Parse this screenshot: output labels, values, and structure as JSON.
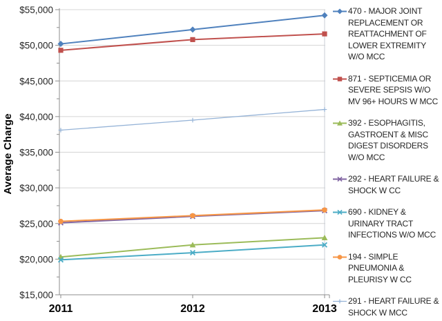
{
  "chart_data": {
    "type": "line",
    "title": "",
    "xlabel": "",
    "ylabel": "Average Charge",
    "x": [
      2011,
      2012,
      2013
    ],
    "x_tick_labels": [
      "2011",
      "2012",
      "2013"
    ],
    "ylim": [
      15000,
      55000
    ],
    "y_major_step": 5000,
    "y_minor_step": 2500,
    "y_tick_labels": [
      "$15,000",
      "$20,000",
      "$25,000",
      "$30,000",
      "$35,000",
      "$40,000",
      "$45,000",
      "$50,000",
      "$55,000"
    ],
    "grid": "horizontal-major",
    "legend_position": "right",
    "series": [
      {
        "name": "470 - MAJOR JOINT REPLACEMENT OR REATTACHMENT OF LOWER EXTREMITY W/O MCC",
        "marker": "diamond",
        "color": "#4F81BD",
        "line_width": 2,
        "values": [
          50200,
          52200,
          54200
        ]
      },
      {
        "name": "871 - SEPTICEMIA OR SEVERE SEPSIS W/O MV 96+ HOURS W MCC",
        "marker": "square",
        "color": "#C0504D",
        "line_width": 2,
        "values": [
          49300,
          50800,
          51600
        ]
      },
      {
        "name": "392 - ESOPHAGITIS, GASTROENT & MISC DIGEST DISORDERS W/O MCC",
        "marker": "triangle",
        "color": "#9BBB59",
        "line_width": 2,
        "values": [
          20300,
          22000,
          23000
        ]
      },
      {
        "name": "292 - HEART FAILURE & SHOCK W CC",
        "marker": "x",
        "color": "#8064A2",
        "line_width": 2,
        "values": [
          25100,
          26000,
          26800
        ]
      },
      {
        "name": "690 - KIDNEY & URINARY TRACT INFECTIONS W/O MCC",
        "marker": "x",
        "color": "#4BACC6",
        "line_width": 2,
        "values": [
          19900,
          20900,
          22000
        ]
      },
      {
        "name": "194 - SIMPLE PNEUMONIA & PLEURISY W CC",
        "marker": "circle",
        "color": "#F79646",
        "line_width": 2,
        "values": [
          25300,
          26100,
          26900
        ]
      },
      {
        "name": "291 - HEART FAILURE & SHOCK W MCC",
        "marker": "plus",
        "color": "#95B3D7",
        "line_width": 1.3,
        "values": [
          38100,
          39500,
          41000
        ]
      }
    ]
  }
}
